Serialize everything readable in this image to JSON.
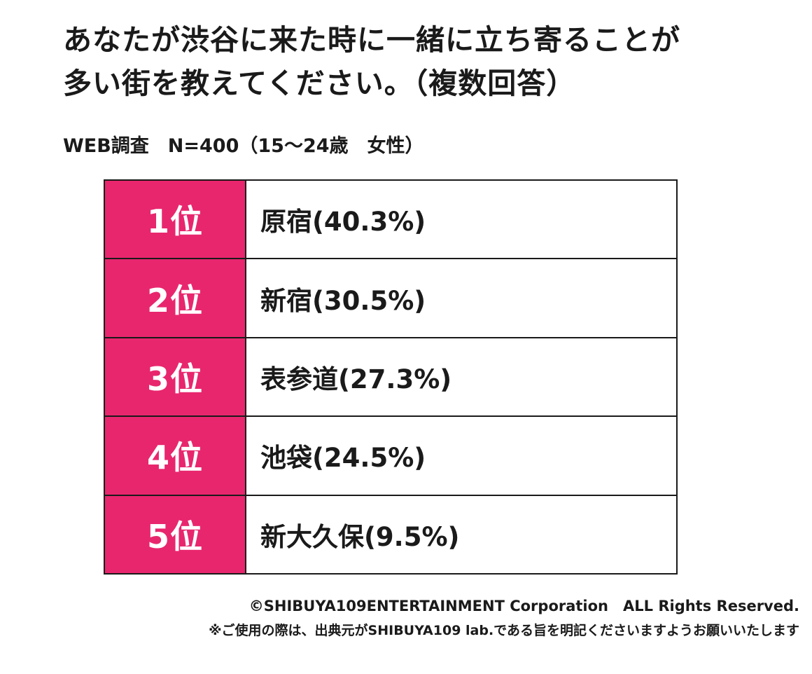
{
  "chart_data": {
    "type": "table",
    "title_lines": [
      "あなたが渋谷に来た時に一緒に立ち寄ることが",
      "多い街を教えてください。（複数回答）"
    ],
    "subtitle": "WEB調査　N=400（15～24歳　女性）",
    "rows": [
      {
        "rank": "1位",
        "label": "原宿(40.3%)",
        "place": "原宿",
        "percent": 40.3
      },
      {
        "rank": "2位",
        "label": "新宿(30.5%)",
        "place": "新宿",
        "percent": 30.5
      },
      {
        "rank": "3位",
        "label": "表参道(27.3%)",
        "place": "表参道",
        "percent": 27.3
      },
      {
        "rank": "4位",
        "label": "池袋(24.5%)",
        "place": "池袋",
        "percent": 24.5
      },
      {
        "rank": "5位",
        "label": "新大久保(9.5%)",
        "place": "新大久保",
        "percent": 9.5
      }
    ]
  },
  "footer": {
    "copyright": "©SHIBUYA109ENTERTAINMENT Corporation　ALL Rights Reserved.",
    "notice": "※ご使用の際は、出典元がSHIBUYA109 lab.である旨を明記くださいますようお願いいたします"
  },
  "colors": {
    "rank_background": "#e8266e",
    "rank_text": "#ffffff",
    "border": "#1a1a1a"
  }
}
